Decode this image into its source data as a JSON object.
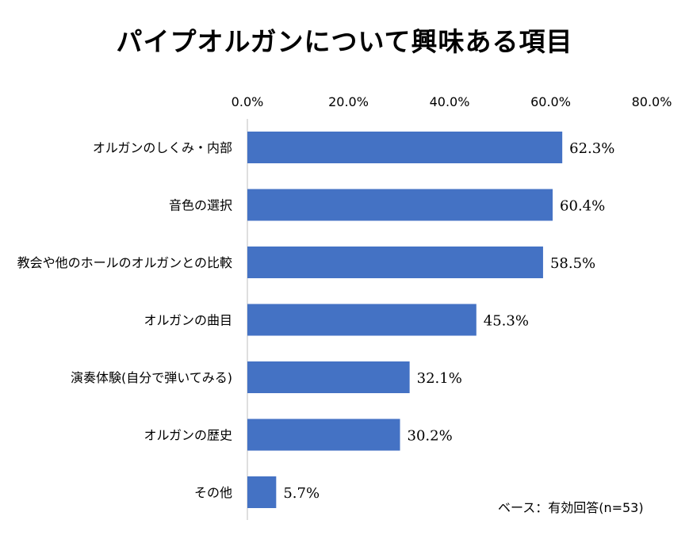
{
  "chart_data": {
    "type": "bar",
    "orientation": "horizontal",
    "title": "パイプオルガンについて興味ある項目",
    "categories": [
      "オルガンのしくみ・内部",
      "音色の選択",
      "教会や他のホールのオルガンとの比較",
      "オルガンの曲目",
      "演奏体験(自分で弾いてみる)",
      "オルガンの歴史",
      "その他"
    ],
    "values": [
      62.3,
      60.4,
      58.5,
      45.3,
      32.1,
      30.2,
      5.7
    ],
    "value_labels": [
      "62.3%",
      "60.4%",
      "58.5%",
      "45.3%",
      "32.1%",
      "30.2%",
      "5.7%"
    ],
    "x_ticks": [
      0,
      20,
      40,
      60,
      80
    ],
    "x_tick_labels": [
      "0.0%",
      "20.0%",
      "40.0%",
      "60.0%",
      "80.0%"
    ],
    "xlim": [
      0,
      80
    ],
    "axis_position": "top",
    "grid": false,
    "bar_color": "#4472C4",
    "note": "ベース：有効回答(n=53)"
  }
}
